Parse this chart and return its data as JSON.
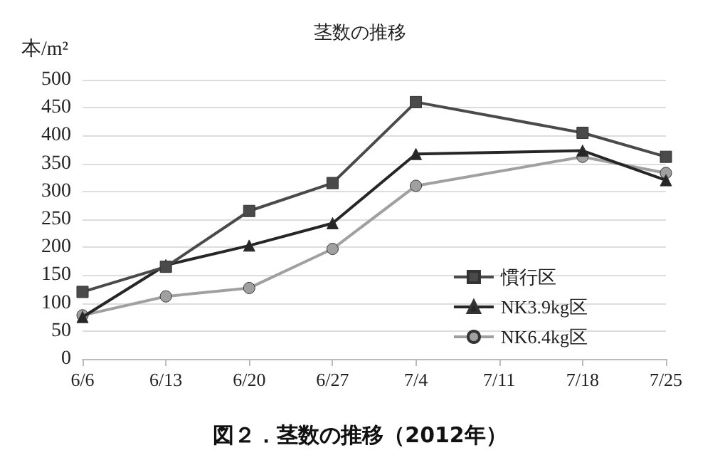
{
  "chart_data": {
    "type": "line",
    "title": "茎数の推移",
    "ylabel": "本/m²",
    "annotations": [
      "図２．茎数の推移（2012年）"
    ],
    "x": [
      "--06-06",
      "--06-13",
      "--06-20",
      "--06-27",
      "--07-04",
      "--07-18",
      "--07-25"
    ],
    "series": [
      {
        "name": "慣行区",
        "color": "#4a4a4a",
        "marker": "square",
        "values": [
          120,
          165,
          265,
          315,
          460,
          405,
          362
        ]
      },
      {
        "name": "NK3.9kg区",
        "color": "#262626",
        "marker": "triangle",
        "values": [
          75,
          168,
          203,
          243,
          367,
          373,
          320
        ]
      },
      {
        "name": "NK6.4kg区",
        "color": "#a0a0a0",
        "marker": "circle",
        "values": [
          78,
          112,
          127,
          197,
          310,
          362,
          333
        ]
      }
    ],
    "xlim": [
      "--06-06",
      "--07-25"
    ],
    "xticks": [
      {
        "value": "--06-06",
        "label": "6/6"
      },
      {
        "value": "--06-13",
        "label": "6/13"
      },
      {
        "value": "--06-20",
        "label": "6/20"
      },
      {
        "value": "--06-27",
        "label": "6/27"
      },
      {
        "value": "--07-04",
        "label": "7/4"
      },
      {
        "value": "--07-11",
        "label": "7/11"
      },
      {
        "value": "--07-18",
        "label": "7/18"
      },
      {
        "value": "--07-25",
        "label": "7/25"
      }
    ],
    "ylim": [
      0,
      500
    ],
    "yticks": [
      0,
      50,
      100,
      150,
      200,
      250,
      300,
      350,
      400,
      450,
      500
    ],
    "grid": "y",
    "legend": "right",
    "line_style": "solid"
  }
}
